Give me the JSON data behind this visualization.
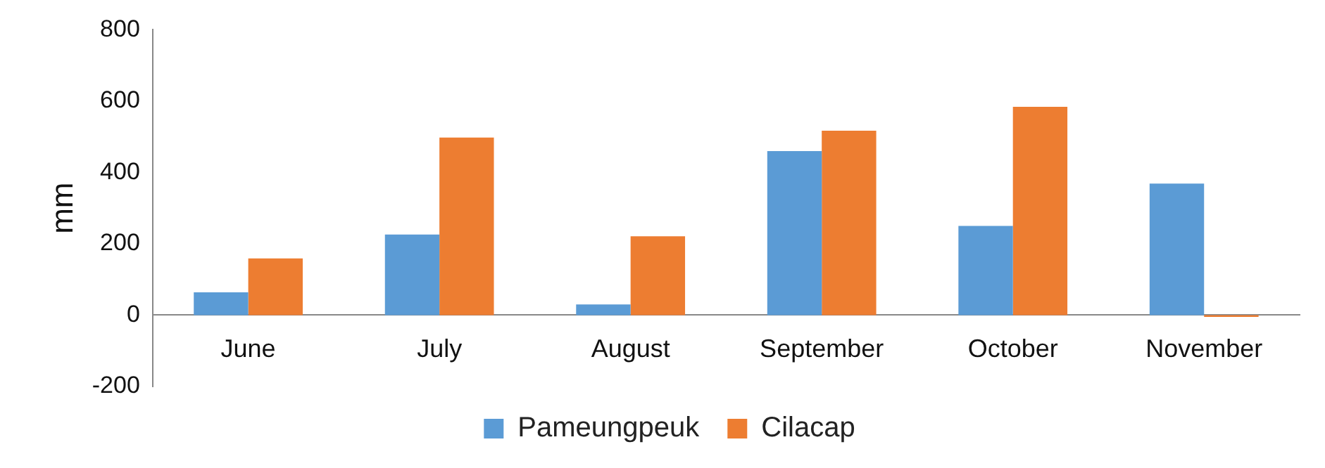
{
  "chart_data": {
    "type": "bar",
    "ylabel": "mm",
    "categories": [
      "June",
      "July",
      "August",
      "September",
      "October",
      "November"
    ],
    "series": [
      {
        "name": "Pameungpeuk",
        "color": "#5b9bd5",
        "values": [
          64,
          226,
          30,
          460,
          250,
          369
        ]
      },
      {
        "name": "Cilacap",
        "color": "#ed7d31",
        "values": [
          159,
          498,
          221,
          517,
          584,
          -5
        ]
      }
    ],
    "ylim": [
      -200,
      800
    ],
    "yticks": [
      -200,
      0,
      200,
      400,
      600,
      800
    ],
    "grid": false,
    "legend": "bottom"
  }
}
